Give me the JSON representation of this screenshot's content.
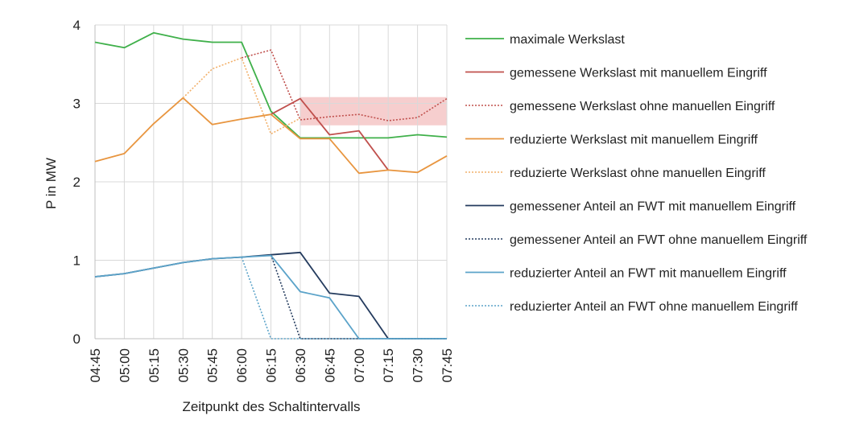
{
  "chart_data": {
    "type": "line",
    "xlabel": "Zeitpunkt des Schaltintervalls",
    "ylabel": "P in MW",
    "ylim": [
      0,
      4
    ],
    "yticks": [
      "0",
      "1",
      "2",
      "3",
      "4"
    ],
    "grid": true,
    "legend_position": "right",
    "categories": [
      "04:45",
      "05:00",
      "05:15",
      "05:30",
      "05:45",
      "06:00",
      "06:15",
      "06:30",
      "06:45",
      "07:00",
      "07:15",
      "07:30",
      "07:45"
    ],
    "band": {
      "from": 2.72,
      "to": 3.08,
      "color": "#f4c6c6"
    },
    "series": [
      {
        "name": "maximale Werkslast",
        "color": "#3fb04a",
        "dash": false,
        "values": [
          3.78,
          3.71,
          3.9,
          3.82,
          3.78,
          3.78,
          2.9,
          2.56,
          2.56,
          2.56,
          2.56,
          2.6,
          2.57
        ]
      },
      {
        "name": "gemessene Werkslast mit manuellem Eingriff",
        "color": "#c0504d",
        "dash": false,
        "values": [
          null,
          null,
          null,
          null,
          null,
          null,
          2.86,
          3.06,
          2.6,
          2.65,
          2.15,
          null,
          null
        ]
      },
      {
        "name": "gemessene Werkslast ohne manuellen Eingriff",
        "color": "#c0504d",
        "dash": true,
        "values": [
          null,
          null,
          null,
          null,
          null,
          3.58,
          3.68,
          2.79,
          2.83,
          2.86,
          2.78,
          2.82,
          3.06
        ]
      },
      {
        "name": "reduzierte Werkslast mit manuellem Eingriff",
        "color": "#e8953f",
        "dash": false,
        "values": [
          2.26,
          2.36,
          2.74,
          3.07,
          2.73,
          2.8,
          2.86,
          2.55,
          2.55,
          2.11,
          2.15,
          2.12,
          2.33
        ]
      },
      {
        "name": "reduzierte Werkslast ohne manuellen Eingriff",
        "color": "#f2b06a",
        "dash": true,
        "values": [
          null,
          null,
          null,
          3.07,
          3.44,
          3.58,
          2.61,
          2.81,
          null,
          null,
          null,
          null,
          null
        ]
      },
      {
        "name": "gemessener Anteil an FWT mit manuellem Eingriff",
        "color": "#243b5e",
        "dash": false,
        "values": [
          0.79,
          0.83,
          0.9,
          0.97,
          1.02,
          1.04,
          1.07,
          1.1,
          0.58,
          0.54,
          0.0,
          0.0,
          0.0
        ]
      },
      {
        "name": "gemessener Anteil an FWT ohne manuellem Eingriff",
        "color": "#243b5e",
        "dash": true,
        "values": [
          null,
          null,
          null,
          null,
          null,
          null,
          1.07,
          0.0,
          0.0,
          0.0,
          0.0,
          0.0,
          0.0
        ]
      },
      {
        "name": "reduzierter Anteil an FWT mit manuellem Eingriff",
        "color": "#5ba3c9",
        "dash": false,
        "values": [
          0.79,
          0.83,
          0.9,
          0.97,
          1.02,
          1.04,
          1.06,
          0.6,
          0.52,
          0.0,
          0.0,
          0.0,
          0.0
        ]
      },
      {
        "name": "reduzierter Anteil an FWT ohne manuellem Eingriff",
        "color": "#5ba3c9",
        "dash": true,
        "values": [
          null,
          null,
          null,
          null,
          null,
          1.04,
          0.0,
          0.0,
          0.0,
          0.0,
          0.0,
          0.0,
          0.0
        ]
      }
    ]
  }
}
